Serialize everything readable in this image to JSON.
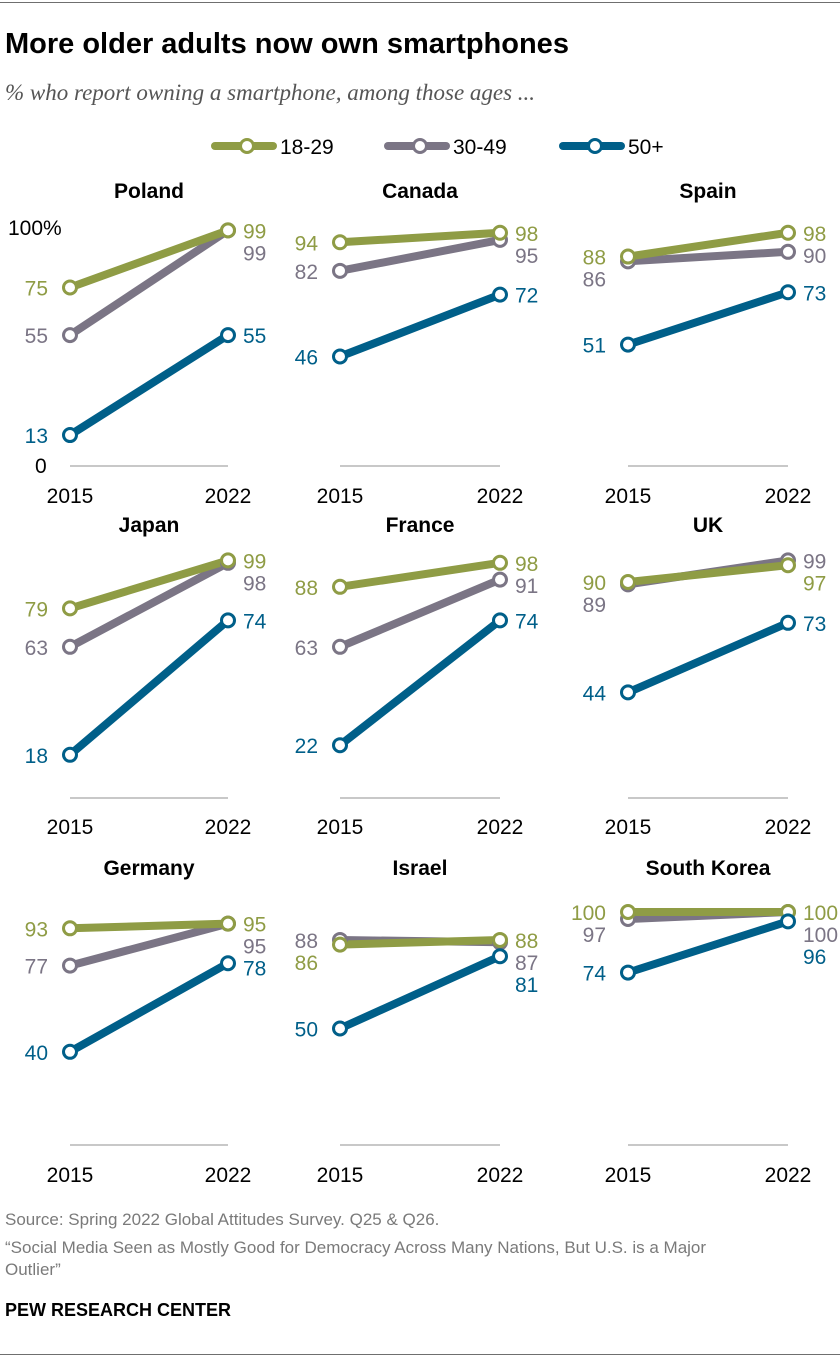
{
  "title": "More older adults now own smartphones",
  "subtitle": "% who report owning a smartphone, among those ages ...",
  "source": "Source: Spring 2022 Global Attitudes Survey. Q25 & Q26.",
  "report_line1": "“Social Media Seen as Mostly Good for Democracy Across Many Nations, But U.S. is a Major",
  "report_line2": "Outlier”",
  "brand": "PEW RESEARCH CENTER",
  "colors": {
    "18-29": "#8f9c45",
    "30-49": "#7b7585",
    "50+": "#005f89",
    "axis": "#a6a6a6",
    "country_label": "#000000"
  },
  "chart_data": {
    "type": "line",
    "legend": {
      "position": "top",
      "entries": [
        "18-29",
        "30-49",
        "50+"
      ]
    },
    "x": [
      "2015",
      "2022"
    ],
    "y_range": [
      0,
      100
    ],
    "y_axis_labels": [
      "100%",
      "0"
    ],
    "grid": false,
    "panels": [
      {
        "country": "Poland",
        "series": [
          {
            "name": "18-29",
            "values": [
              75,
              99
            ],
            "labels": [
              "75",
              "99"
            ]
          },
          {
            "name": "30-49",
            "values": [
              55,
              99
            ],
            "labels": [
              "55",
              "99"
            ]
          },
          {
            "name": "50+",
            "values": [
              13,
              55
            ],
            "labels": [
              "13",
              "55"
            ]
          }
        ]
      },
      {
        "country": "Canada",
        "series": [
          {
            "name": "18-29",
            "values": [
              94,
              98
            ],
            "labels": [
              "94",
              "98"
            ]
          },
          {
            "name": "30-49",
            "values": [
              82,
              95
            ],
            "labels": [
              "82",
              "95"
            ]
          },
          {
            "name": "50+",
            "values": [
              46,
              72
            ],
            "labels": [
              "46",
              "72"
            ]
          }
        ]
      },
      {
        "country": "Spain",
        "series": [
          {
            "name": "18-29",
            "values": [
              88,
              98
            ],
            "labels": [
              "88",
              "98"
            ]
          },
          {
            "name": "30-49",
            "values": [
              86,
              90
            ],
            "labels": [
              "86",
              "90"
            ]
          },
          {
            "name": "50+",
            "values": [
              51,
              73
            ],
            "labels": [
              "51",
              "73"
            ]
          }
        ]
      },
      {
        "country": "Japan",
        "series": [
          {
            "name": "18-29",
            "values": [
              79,
              99
            ],
            "labels": [
              "79",
              "99"
            ]
          },
          {
            "name": "30-49",
            "values": [
              63,
              98
            ],
            "labels": [
              "63",
              "98"
            ]
          },
          {
            "name": "50+",
            "values": [
              18,
              74
            ],
            "labels": [
              "18",
              "74"
            ]
          }
        ]
      },
      {
        "country": "France",
        "series": [
          {
            "name": "18-29",
            "values": [
              88,
              98
            ],
            "labels": [
              "88",
              "98"
            ]
          },
          {
            "name": "30-49",
            "values": [
              63,
              91
            ],
            "labels": [
              "63",
              "91"
            ]
          },
          {
            "name": "50+",
            "values": [
              22,
              74
            ],
            "labels": [
              "22",
              "74"
            ]
          }
        ]
      },
      {
        "country": "UK",
        "series": [
          {
            "name": "18-29",
            "values": [
              90,
              97
            ],
            "labels": [
              "90",
              "97"
            ]
          },
          {
            "name": "30-49",
            "values": [
              89,
              99
            ],
            "labels": [
              "89",
              "99"
            ]
          },
          {
            "name": "50+",
            "values": [
              44,
              73
            ],
            "labels": [
              "44",
              "73"
            ]
          }
        ]
      },
      {
        "country": "Germany",
        "series": [
          {
            "name": "18-29",
            "values": [
              93,
              95
            ],
            "labels": [
              "93",
              "95"
            ]
          },
          {
            "name": "30-49",
            "values": [
              77,
              95
            ],
            "labels": [
              "77",
              "95"
            ]
          },
          {
            "name": "50+",
            "values": [
              40,
              78
            ],
            "labels": [
              "40",
              "78"
            ]
          }
        ]
      },
      {
        "country": "Israel",
        "series": [
          {
            "name": "18-29",
            "values": [
              86,
              88
            ],
            "labels": [
              "86",
              "88"
            ]
          },
          {
            "name": "30-49",
            "values": [
              88,
              87
            ],
            "labels": [
              "88",
              "87"
            ]
          },
          {
            "name": "50+",
            "values": [
              50,
              81
            ],
            "labels": [
              "50",
              "81"
            ]
          }
        ]
      },
      {
        "country": "South Korea",
        "series": [
          {
            "name": "18-29",
            "values": [
              100,
              100
            ],
            "labels": [
              "100",
              "100"
            ]
          },
          {
            "name": "30-49",
            "values": [
              97,
              100
            ],
            "labels": [
              "97",
              "100"
            ]
          },
          {
            "name": "50+",
            "values": [
              74,
              96
            ],
            "labels": [
              "74",
              "96"
            ]
          }
        ]
      }
    ]
  }
}
